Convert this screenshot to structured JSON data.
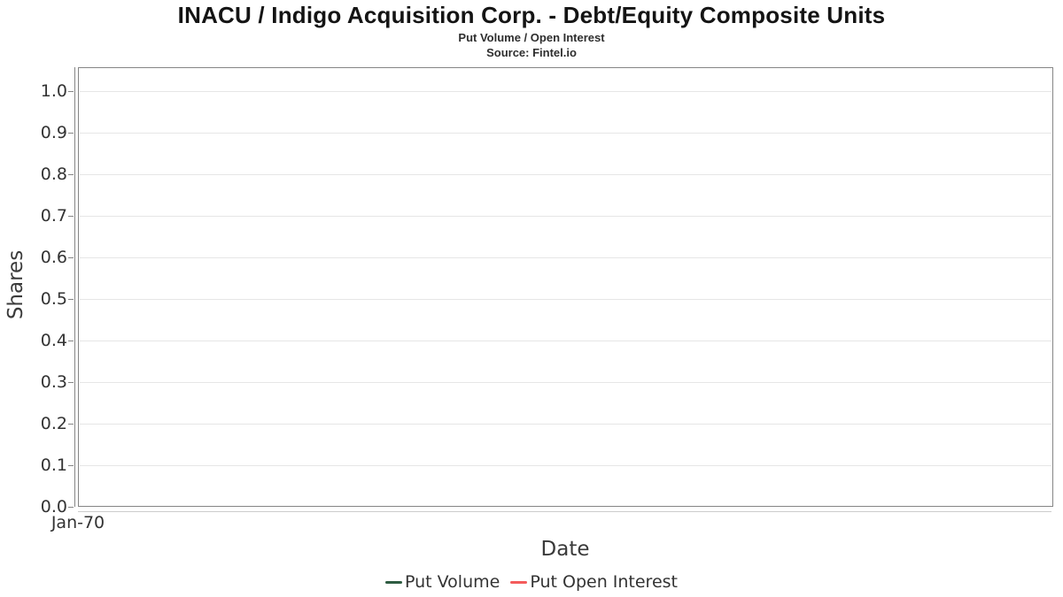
{
  "chart_data": {
    "type": "line",
    "title": "INACU / Indigo Acquisition Corp. - Debt/Equity Composite Units",
    "subtitle": "Put Volume / Open Interest",
    "source": "Source: Fintel.io",
    "xlabel": "Date",
    "ylabel": "Shares",
    "xticklabels": [
      "Jan-70"
    ],
    "yticklabels": [
      "0.0",
      "0.1",
      "0.2",
      "0.3",
      "0.4",
      "0.5",
      "0.6",
      "0.7",
      "0.8",
      "0.9",
      "1.0"
    ],
    "ylim": [
      0.0,
      1.057
    ],
    "grid": "horizontal-only",
    "grid_color": "#e6e6e6",
    "axis_color": "#858585",
    "legend_position": "bottom-center",
    "series": [
      {
        "name": "Put Volume",
        "color": "#2e5c41",
        "x": [],
        "y": []
      },
      {
        "name": "Put Open Interest",
        "color": "#f45b5b",
        "x": [],
        "y": []
      }
    ]
  }
}
